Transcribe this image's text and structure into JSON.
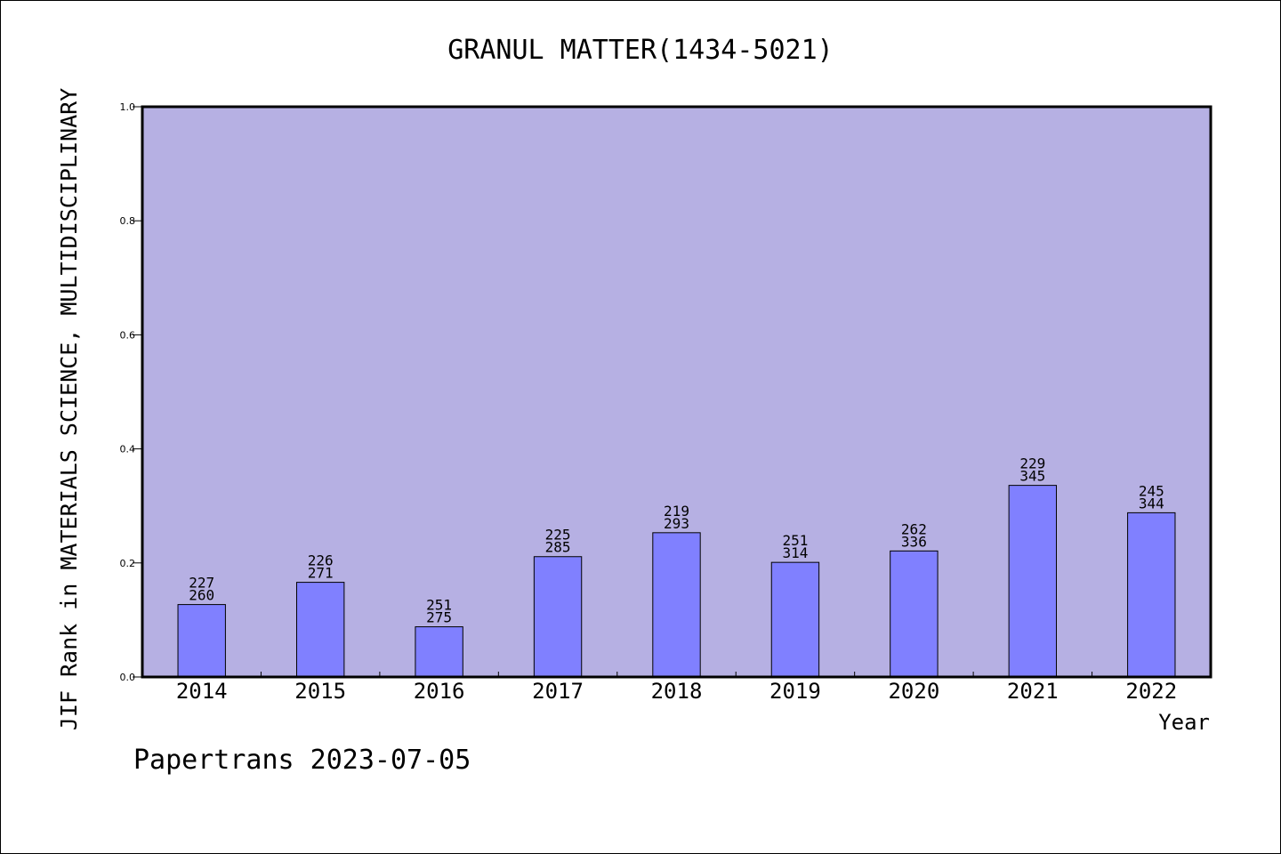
{
  "chart_data": {
    "type": "bar",
    "title": "GRANUL MATTER(1434-5021)",
    "xlabel": "Year",
    "ylabel": "JIF Rank in MATERIALS SCIENCE, MULTIDISCIPLINARY",
    "ylim": [
      0,
      1.0
    ],
    "yticks": [
      "0.0",
      "0.2",
      "0.4",
      "0.6",
      "0.8",
      "1.0"
    ],
    "categories": [
      "2014",
      "2015",
      "2016",
      "2017",
      "2018",
      "2019",
      "2020",
      "2021",
      "2022"
    ],
    "values": [
      0.127,
      0.166,
      0.088,
      0.211,
      0.253,
      0.201,
      0.221,
      0.336,
      0.288
    ],
    "rank_labels": [
      "227",
      "226",
      "251",
      "225",
      "219",
      "251",
      "262",
      "229",
      "245"
    ],
    "total_labels": [
      "260",
      "271",
      "275",
      "285",
      "293",
      "314",
      "336",
      "345",
      "344"
    ],
    "colors": {
      "plot_bg": "#b6b0e3",
      "bar": "#8080ff",
      "axis": "#000000"
    },
    "grid": false,
    "legend": "none"
  },
  "footer": {
    "text": "Papertrans 2023-07-05"
  }
}
